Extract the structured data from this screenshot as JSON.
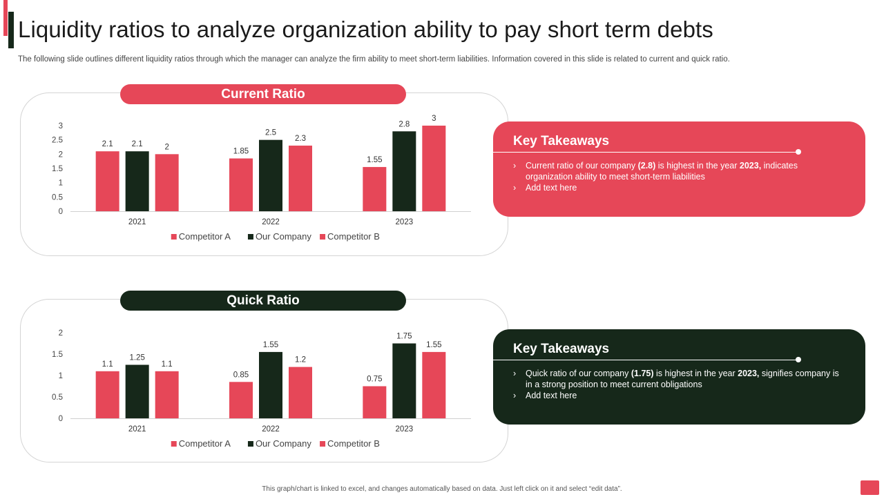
{
  "colors": {
    "red": "#E64758",
    "dark": "#16281A",
    "accent_red": "#E64758",
    "accent_dark": "#16281A"
  },
  "slide": {
    "title": "Liquidity ratios to analyze organization ability to pay short term debts",
    "subtitle": "The following slide outlines different liquidity ratios through which the manager can analyze the firm ability to meet short-term liabilities. Information covered in this slide is related to current and quick ratio.",
    "footer": "This graph/chart is linked to excel, and changes automatically based on data. Just left click on it and select “edit data”."
  },
  "chart_data": [
    {
      "type": "bar",
      "title": "Current Ratio",
      "categories": [
        "2021",
        "2022",
        "2023"
      ],
      "series": [
        {
          "name": "Competitor A",
          "values": [
            2.1,
            1.85,
            1.55
          ]
        },
        {
          "name": "Our Company",
          "values": [
            2.1,
            2.5,
            2.8
          ]
        },
        {
          "name": "Competitor B",
          "values": [
            2,
            2.3,
            3
          ]
        }
      ],
      "series_colors": [
        "#E64758",
        "#16281A",
        "#E64758"
      ],
      "ylim": [
        0,
        3
      ],
      "yticks": [
        "0",
        "0.5",
        "1",
        "1.5",
        "2",
        "2.5",
        "3"
      ],
      "value_labels": [
        [
          "2.1",
          "1.85",
          "1.55"
        ],
        [
          "2.1",
          "2.5",
          "2.8"
        ],
        [
          "2",
          "2.3",
          "3"
        ]
      ],
      "legend": "bottom",
      "grid": false
    },
    {
      "type": "bar",
      "title": "Quick Ratio",
      "categories": [
        "2021",
        "2022",
        "2023"
      ],
      "series": [
        {
          "name": "Competitor A",
          "values": [
            1.1,
            0.85,
            0.75
          ]
        },
        {
          "name": "Our Company",
          "values": [
            1.25,
            1.55,
            1.75
          ]
        },
        {
          "name": "Competitor B",
          "values": [
            1.1,
            1.2,
            1.55
          ]
        }
      ],
      "series_colors": [
        "#E64758",
        "#16281A",
        "#E64758"
      ],
      "ylim": [
        0,
        2
      ],
      "yticks": [
        "0",
        "0.5",
        "1",
        "1.5",
        "2"
      ],
      "value_labels": [
        [
          "1.1",
          "0.85",
          "0.75"
        ],
        [
          "1.25",
          "1.55",
          "1.75"
        ],
        [
          "1.1",
          "1.2",
          "1.55"
        ]
      ],
      "legend": "bottom",
      "grid": false
    }
  ],
  "takeaways": [
    {
      "heading": "Key Takeaways",
      "bullet1_pre": "Current ratio of our company ",
      "bullet1_bold1": "(2.8)",
      "bullet1_mid": " is highest in the year ",
      "bullet1_bold2": "2023,",
      "bullet1_post": " indicates organization ability to meet short-term liabilities",
      "bullet2": "Add text here",
      "arrow": "›"
    },
    {
      "heading": "Key Takeaways",
      "bullet1_pre": "Quick ratio of our company ",
      "bullet1_bold1": "(1.75)",
      "bullet1_mid": " is highest in the year ",
      "bullet1_bold2": "2023,",
      "bullet1_post": " signifies company is in a strong position to meet current obligations",
      "bullet2": "Add text here",
      "arrow": "›"
    }
  ]
}
